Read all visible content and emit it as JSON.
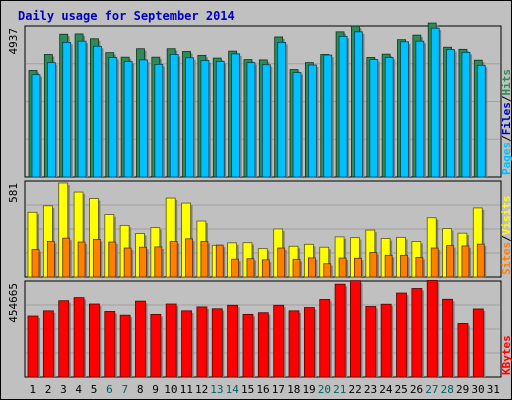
{
  "chart_data": {
    "type": "bar",
    "title": "Daily usage for September 2014",
    "categories": [
      "1",
      "2",
      "3",
      "4",
      "5",
      "6",
      "7",
      "8",
      "9",
      "10",
      "11",
      "12",
      "13",
      "14",
      "15",
      "16",
      "17",
      "18",
      "19",
      "20",
      "21",
      "22",
      "23",
      "24",
      "25",
      "26",
      "27",
      "28",
      "29",
      "30",
      "31"
    ],
    "weekend_days": [
      "6",
      "7",
      "13",
      "14",
      "20",
      "21",
      "27",
      "28"
    ],
    "panels": [
      {
        "id": "pages-files-hits",
        "scale_label": "4937",
        "ylim": [
          0,
          4937
        ],
        "series": [
          {
            "name": "Hits",
            "color": "#00c0ff",
            "values": [
              3390,
              3790,
              4460,
              4500,
              4330,
              3960,
              3830,
              3880,
              3730,
              4060,
              3950,
              3860,
              3830,
              4080,
              3790,
              3720,
              4460,
              3460,
              3710,
              4040,
              4660,
              4810,
              3890,
              3960,
              4480,
              4500,
              4930,
              4220,
              4130,
              3700
            ]
          },
          {
            "name": "Files",
            "color": "#2e8b57",
            "values": [
              3530,
              4060,
              4730,
              4740,
              4580,
              4120,
              3970,
              4250,
              3970,
              4250,
              4160,
              4030,
              3940,
              4170,
              3890,
              3880,
              4640,
              3560,
              3790,
              4060,
              4810,
              5000,
              3960,
              4070,
              4550,
              4700,
              5100,
              4300,
              4230,
              3870
            ]
          },
          {
            "name": "Pages",
            "color": "#0000c0",
            "values": [
              3390,
              3790,
              4460,
              4500,
              4330,
              3960,
              3830,
              3880,
              3730,
              4060,
              3950,
              3860,
              3830,
              4080,
              3790,
              3720,
              4460,
              3460,
              3710,
              4040,
              4660,
              4810,
              3890,
              3960,
              4480,
              4500,
              4930,
              4220,
              4130,
              3700
            ]
          }
        ]
      },
      {
        "id": "visits-sites",
        "scale_label": "581",
        "ylim": [
          0,
          581
        ],
        "series": [
          {
            "name": "Visits",
            "color": "#ffff00",
            "values": [
              400,
              440,
              581,
              525,
              485,
              386,
              319,
              269,
              305,
              488,
              457,
              346,
              196,
              211,
              212,
              175,
              297,
              190,
              202,
              184,
              248,
              243,
              290,
              238,
              245,
              219,
              366,
              299,
              271,
              427
            ]
          },
          {
            "name": "Sites",
            "color": "#ff8000",
            "values": [
              170,
              220,
              240,
              216,
              232,
              216,
              179,
              184,
              186,
              219,
              236,
              220,
              197,
              110,
              113,
              106,
              179,
              109,
              118,
              82,
              117,
              116,
              151,
              134,
              134,
              121,
              179,
              194,
              192,
              203
            ]
          }
        ]
      },
      {
        "id": "kbytes",
        "scale_label": "454665",
        "ylim": [
          0,
          454665
        ],
        "series": [
          {
            "name": "KBytes",
            "color": "#ff0000",
            "values": [
              295000,
              320000,
              369000,
              384000,
              353000,
              317000,
              299000,
              367000,
              303000,
              353000,
              320000,
              339000,
              330000,
              347000,
              303000,
              311000,
              347000,
              320000,
              336000,
              375000,
              449000,
              466000,
              341000,
              352000,
              406000,
              428000,
              467000,
              376000,
              259000,
              329000
            ]
          }
        ]
      }
    ],
    "legend": {
      "top": [
        "Pages",
        "/",
        "Files",
        "/",
        "Hits"
      ],
      "middle": [
        "Sites",
        "/",
        "Visits"
      ],
      "bottom": [
        "KBytes"
      ]
    },
    "colors": {
      "background": "#c0c0c0",
      "grid": "#a0a0a0",
      "title": "#0000c0",
      "weekend_label": "#006060",
      "pages_label": "#00c0ff",
      "files_label": "#0000c0",
      "hits_label": "#2e8b57",
      "sites_label": "#ff8000",
      "visits_label": "#ffff00",
      "kbytes_label": "#ff0000"
    }
  }
}
